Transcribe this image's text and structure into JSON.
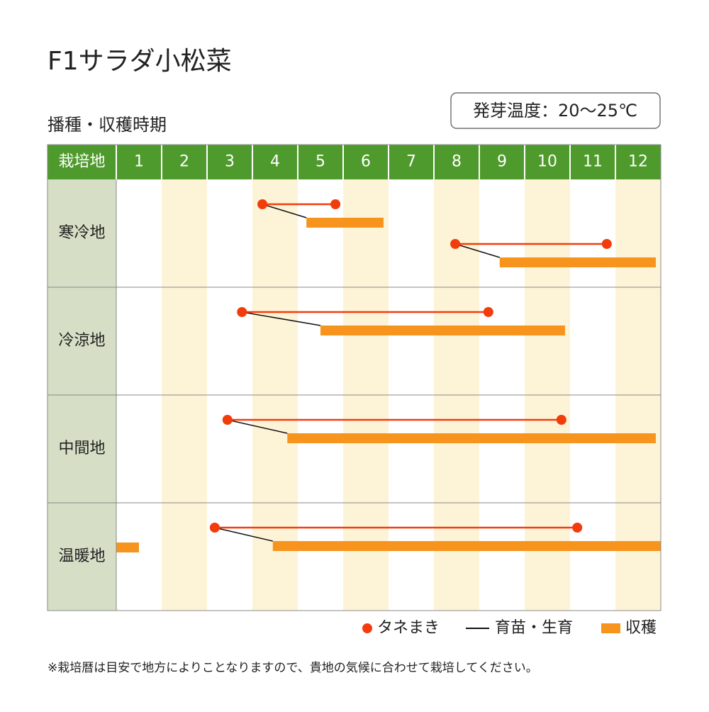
{
  "chart_data": {
    "type": "gantt",
    "title": "F1サラダ小松菜",
    "subtitle": "播種・収穫時期",
    "badge": "発芽温度：20～25℃",
    "corner_label": "栽培地",
    "categories": [
      "1",
      "2",
      "3",
      "4",
      "5",
      "6",
      "7",
      "8",
      "9",
      "10",
      "11",
      "12"
    ],
    "xlim": [
      1,
      13
    ],
    "rows": [
      {
        "name": "寒冷地",
        "tasks": [
          {
            "sow": [
              4.22,
              5.83
            ],
            "harvest": [
              5.19,
              6.89
            ]
          },
          {
            "sow": [
              8.47,
              11.81
            ],
            "harvest": [
              9.45,
              12.89
            ]
          }
        ]
      },
      {
        "name": "冷涼地",
        "tasks": [
          {
            "sow": [
              3.77,
              9.2
            ],
            "harvest": [
              5.5,
              10.89
            ]
          }
        ]
      },
      {
        "name": "中間地",
        "tasks": [
          {
            "sow": [
              3.45,
              10.81
            ],
            "harvest": [
              4.77,
              12.89
            ]
          }
        ]
      },
      {
        "name": "温暖地",
        "tasks": [
          {
            "sow": [
              3.17,
              11.16
            ],
            "harvest": [
              4.45,
              13
            ]
          },
          {
            "harvest": [
              1,
              1.5
            ]
          }
        ]
      }
    ],
    "series": [
      {
        "name": "タネまき",
        "color": "#f23c0c"
      },
      {
        "name": "育苗・生育",
        "color": "#111111"
      },
      {
        "name": "収穫",
        "color": "#f7941d"
      }
    ],
    "note": "※栽培暦は目安で地方によりことなりますので、貴地の気候に合わせて栽培してください。"
  }
}
